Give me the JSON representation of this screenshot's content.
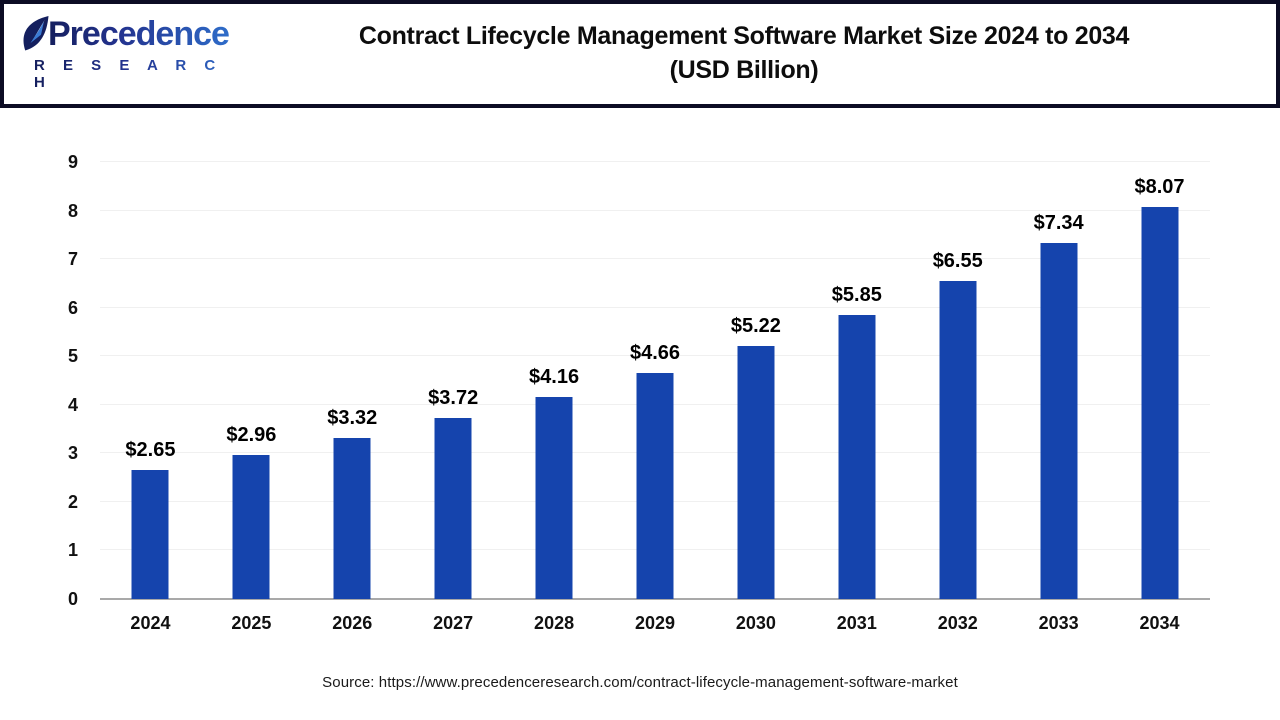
{
  "header": {
    "brand": {
      "name": "Precedence",
      "subtitle": "R E S E A R C H"
    },
    "title_line1": "Contract Lifecycle Management Software Market Size 2024 to 2034",
    "title_line2": "(USD Billion)"
  },
  "chart_data": {
    "type": "bar",
    "title": "Contract Lifecycle Management Software Market Size 2024 to 2034 (USD Billion)",
    "categories": [
      "2024",
      "2025",
      "2026",
      "2027",
      "2028",
      "2029",
      "2030",
      "2031",
      "2032",
      "2033",
      "2034"
    ],
    "values": [
      2.65,
      2.96,
      3.32,
      3.72,
      4.16,
      4.66,
      5.22,
      5.85,
      6.55,
      7.34,
      8.07
    ],
    "value_labels": [
      "$2.65",
      "$2.96",
      "$3.32",
      "$3.72",
      "$4.16",
      "$4.66",
      "$5.22",
      "$5.85",
      "$6.55",
      "$7.34",
      "$8.07"
    ],
    "xlabel": "",
    "ylabel": "",
    "ylim": [
      0,
      9
    ],
    "yticks": [
      0,
      1,
      2,
      3,
      4,
      5,
      6,
      7,
      8,
      9
    ],
    "grid": true,
    "legend": false,
    "bar_color": "#1544ad",
    "gridline_color": "#f0f0f0",
    "baseline_color": "#a9a9a9"
  },
  "footer": {
    "source": "Source: https://www.precedenceresearch.com/contract-lifecycle-management-software-market"
  }
}
